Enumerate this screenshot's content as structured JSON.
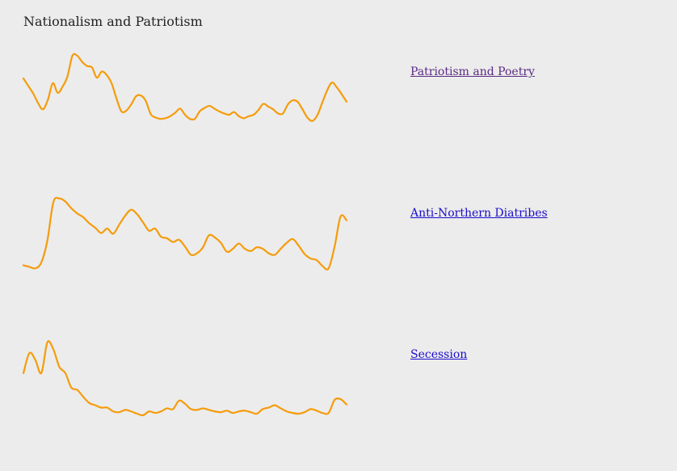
{
  "page": {
    "title": "Nationalism and Patriotism"
  },
  "colors": {
    "line": "#f59c0b",
    "background": "#ececec",
    "link_visited": "#5a2a82",
    "link_unvisited": "#1a0dcc"
  },
  "topics": [
    {
      "label": "Patriotism and Poetry",
      "visited": true
    },
    {
      "label": "Anti-Northern Diatribes",
      "visited": false
    },
    {
      "label": "Secession",
      "visited": false
    }
  ],
  "chart_data": [
    {
      "type": "line",
      "title": "",
      "series": [
        {
          "values": [
            0.67,
            0.56,
            0.45,
            0.31,
            0.22,
            0.36,
            0.6,
            0.46,
            0.55,
            0.7,
            1.0,
            1.0,
            0.91,
            0.85,
            0.83,
            0.68,
            0.77,
            0.72,
            0.6,
            0.38,
            0.19,
            0.2,
            0.29,
            0.41,
            0.42,
            0.34,
            0.15,
            0.1,
            0.08,
            0.09,
            0.12,
            0.17,
            0.23,
            0.14,
            0.08,
            0.08,
            0.19,
            0.24,
            0.27,
            0.23,
            0.19,
            0.16,
            0.14,
            0.18,
            0.12,
            0.09,
            0.12,
            0.14,
            0.21,
            0.3,
            0.26,
            0.22,
            0.16,
            0.16,
            0.29,
            0.35,
            0.33,
            0.22,
            0.1,
            0.05,
            0.13,
            0.31,
            0.49,
            0.61,
            0.54,
            0.44,
            0.33
          ]
        }
      ],
      "ylim": [
        0,
        1
      ]
    },
    {
      "type": "line",
      "title": "",
      "series": [
        {
          "values": [
            0.06,
            0.04,
            0.02,
            0.1,
            0.39,
            0.9,
            0.95,
            0.91,
            0.82,
            0.75,
            0.7,
            0.62,
            0.56,
            0.49,
            0.55,
            0.48,
            0.6,
            0.72,
            0.8,
            0.74,
            0.63,
            0.52,
            0.55,
            0.44,
            0.42,
            0.37,
            0.4,
            0.31,
            0.2,
            0.22,
            0.3,
            0.46,
            0.43,
            0.36,
            0.24,
            0.28,
            0.35,
            0.28,
            0.25,
            0.3,
            0.28,
            0.22,
            0.2,
            0.28,
            0.36,
            0.41,
            0.32,
            0.21,
            0.15,
            0.13,
            0.05,
            0.02,
            0.31,
            0.71,
            0.66
          ]
        }
      ],
      "ylim": [
        0,
        1
      ]
    },
    {
      "type": "line",
      "title": "",
      "series": [
        {
          "values": [
            0.55,
            0.81,
            0.72,
            0.55,
            0.95,
            0.86,
            0.63,
            0.55,
            0.36,
            0.33,
            0.24,
            0.16,
            0.13,
            0.1,
            0.1,
            0.05,
            0.04,
            0.07,
            0.05,
            0.02,
            0.0,
            0.05,
            0.03,
            0.05,
            0.09,
            0.08,
            0.19,
            0.15,
            0.08,
            0.07,
            0.09,
            0.07,
            0.05,
            0.04,
            0.06,
            0.03,
            0.05,
            0.06,
            0.04,
            0.02,
            0.08,
            0.1,
            0.13,
            0.09,
            0.05,
            0.03,
            0.02,
            0.04,
            0.08,
            0.06,
            0.03,
            0.03,
            0.2,
            0.21,
            0.14
          ]
        }
      ],
      "ylim": [
        0,
        1
      ]
    }
  ]
}
